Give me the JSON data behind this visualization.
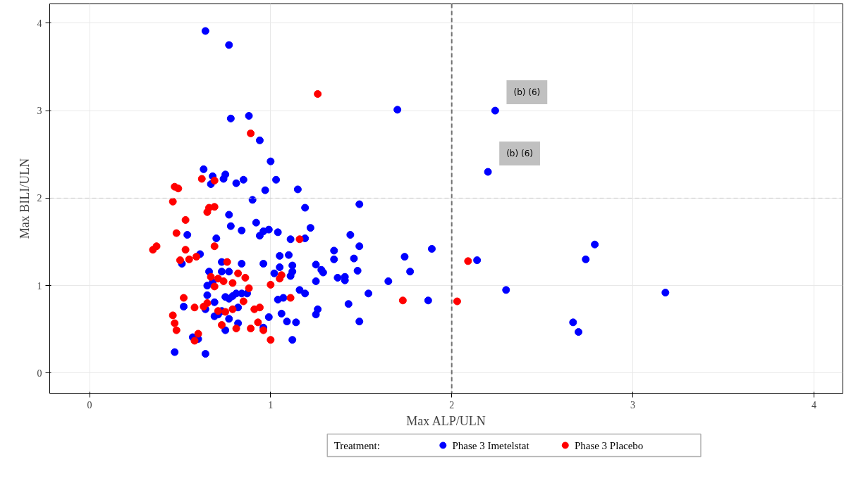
{
  "chart_data": {
    "type": "scatter",
    "xlabel": "Max ALP/ULN",
    "ylabel": "Max BILI/ULN",
    "legend_title": "Treatment:",
    "legend": "bottom",
    "marker": "circle",
    "grid": true,
    "xlim": [
      -0.22,
      4.16
    ],
    "ylim": [
      -0.23,
      4.22
    ],
    "xticks": [
      0,
      1,
      2,
      3,
      4
    ],
    "yticks": [
      0,
      1,
      2,
      3,
      4
    ],
    "ref_lines": [
      {
        "axis": "x",
        "value": 2,
        "label": null,
        "color": "#707070",
        "line_style": "dashed"
      },
      {
        "axis": "y",
        "value": 2,
        "label": null,
        "color": "#c8c8c8",
        "line_style": "dashed"
      }
    ],
    "annotations": [
      {
        "text": "(b) (6)",
        "x": 2.24,
        "y": 3.0
      },
      {
        "text": "(b) (6)",
        "x": 2.2,
        "y": 2.3
      }
    ],
    "series": [
      {
        "name": "Phase 3 Imetelstat",
        "color": "#0000ff",
        "x": [
          0.64,
          0.77,
          0.78,
          0.88,
          0.94,
          1.0,
          0.63,
          0.68,
          0.75,
          0.74,
          0.67,
          0.81,
          0.85,
          1.03,
          0.97,
          1.15,
          0.9,
          1.19,
          0.77,
          1.7,
          1.49,
          1.22,
          0.99,
          0.96,
          1.04,
          1.11,
          1.19,
          1.44,
          1.49,
          1.89,
          1.35,
          1.35,
          1.46,
          1.74,
          1.77,
          1.48,
          0.96,
          1.05,
          1.1,
          1.05,
          1.12,
          1.12,
          1.11,
          1.02,
          1.25,
          1.28,
          1.29,
          1.25,
          1.37,
          1.41,
          1.41,
          1.65,
          1.16,
          1.19,
          1.54,
          1.04,
          1.07,
          1.43,
          1.26,
          1.25,
          1.87,
          0.99,
          1.06,
          1.09,
          1.14,
          1.49,
          0.96,
          1.12,
          0.78,
          0.84,
          0.92,
          0.94,
          0.54,
          0.7,
          0.61,
          0.51,
          0.73,
          0.84,
          0.66,
          0.73,
          0.77,
          0.68,
          0.65,
          0.75,
          0.77,
          0.79,
          0.81,
          0.84,
          0.87,
          0.65,
          0.69,
          0.52,
          0.64,
          0.82,
          0.73,
          0.71,
          0.69,
          0.77,
          0.82,
          0.75,
          0.57,
          0.6,
          0.47,
          0.64,
          2.14,
          2.3,
          2.67,
          2.7,
          2.74,
          2.79,
          3.18,
          2.24,
          2.2
        ],
        "values": [
          3.91,
          3.75,
          2.91,
          2.94,
          2.66,
          2.42,
          2.33,
          2.25,
          2.27,
          2.22,
          2.16,
          2.17,
          2.21,
          2.21,
          2.09,
          2.1,
          1.98,
          1.89,
          1.81,
          3.01,
          1.93,
          1.66,
          1.64,
          1.62,
          1.61,
          1.53,
          1.54,
          1.58,
          1.45,
          1.42,
          1.4,
          1.3,
          1.31,
          1.33,
          1.16,
          1.17,
          1.25,
          1.34,
          1.35,
          1.21,
          1.23,
          1.16,
          1.11,
          1.14,
          1.24,
          1.18,
          1.15,
          1.05,
          1.09,
          1.1,
          1.06,
          1.05,
          0.95,
          0.91,
          0.91,
          0.84,
          0.86,
          0.79,
          0.73,
          0.67,
          0.83,
          0.64,
          0.68,
          0.59,
          0.58,
          0.59,
          0.52,
          0.38,
          1.68,
          1.63,
          1.72,
          1.57,
          1.58,
          1.54,
          1.36,
          1.25,
          1.27,
          1.25,
          1.16,
          1.16,
          1.16,
          1.04,
          1.0,
          0.87,
          0.85,
          0.88,
          0.91,
          0.91,
          0.91,
          0.89,
          0.81,
          0.76,
          0.73,
          0.75,
          0.71,
          0.67,
          0.65,
          0.62,
          0.57,
          0.49,
          0.41,
          0.39,
          0.24,
          0.22,
          1.29,
          0.95,
          0.58,
          0.47,
          1.3,
          1.47,
          0.92,
          3.0,
          2.3
        ]
      },
      {
        "name": "Phase 3 Placebo",
        "color": "#ff0000",
        "x": [
          1.26,
          0.89,
          0.62,
          0.69,
          0.47,
          0.49,
          0.46,
          0.66,
          0.69,
          0.65,
          0.53,
          1.16,
          1.05,
          1.0,
          2.09,
          1.11,
          1.73,
          2.03,
          0.96,
          1.0,
          0.48,
          0.69,
          0.37,
          0.35,
          0.53,
          0.59,
          0.55,
          0.5,
          0.76,
          1.06,
          0.82,
          0.86,
          0.67,
          0.71,
          0.74,
          0.69,
          0.79,
          0.88,
          0.85,
          0.65,
          0.63,
          0.52,
          0.58,
          0.79,
          0.91,
          0.94,
          0.71,
          0.75,
          0.46,
          0.47,
          0.48,
          0.73,
          0.81,
          0.89,
          0.93,
          0.6,
          0.58
        ],
        "values": [
          3.19,
          2.74,
          2.22,
          2.2,
          2.13,
          2.11,
          1.96,
          1.89,
          1.9,
          1.84,
          1.75,
          1.53,
          1.08,
          1.01,
          1.28,
          0.86,
          0.83,
          0.82,
          0.49,
          0.38,
          1.6,
          1.45,
          1.45,
          1.41,
          1.41,
          1.33,
          1.3,
          1.29,
          1.27,
          1.12,
          1.14,
          1.09,
          1.1,
          1.08,
          1.05,
          0.99,
          1.03,
          0.97,
          0.82,
          0.8,
          0.76,
          0.86,
          0.75,
          0.73,
          0.73,
          0.75,
          0.71,
          0.7,
          0.66,
          0.57,
          0.49,
          0.55,
          0.51,
          0.51,
          0.58,
          0.45,
          0.37
        ]
      }
    ]
  }
}
